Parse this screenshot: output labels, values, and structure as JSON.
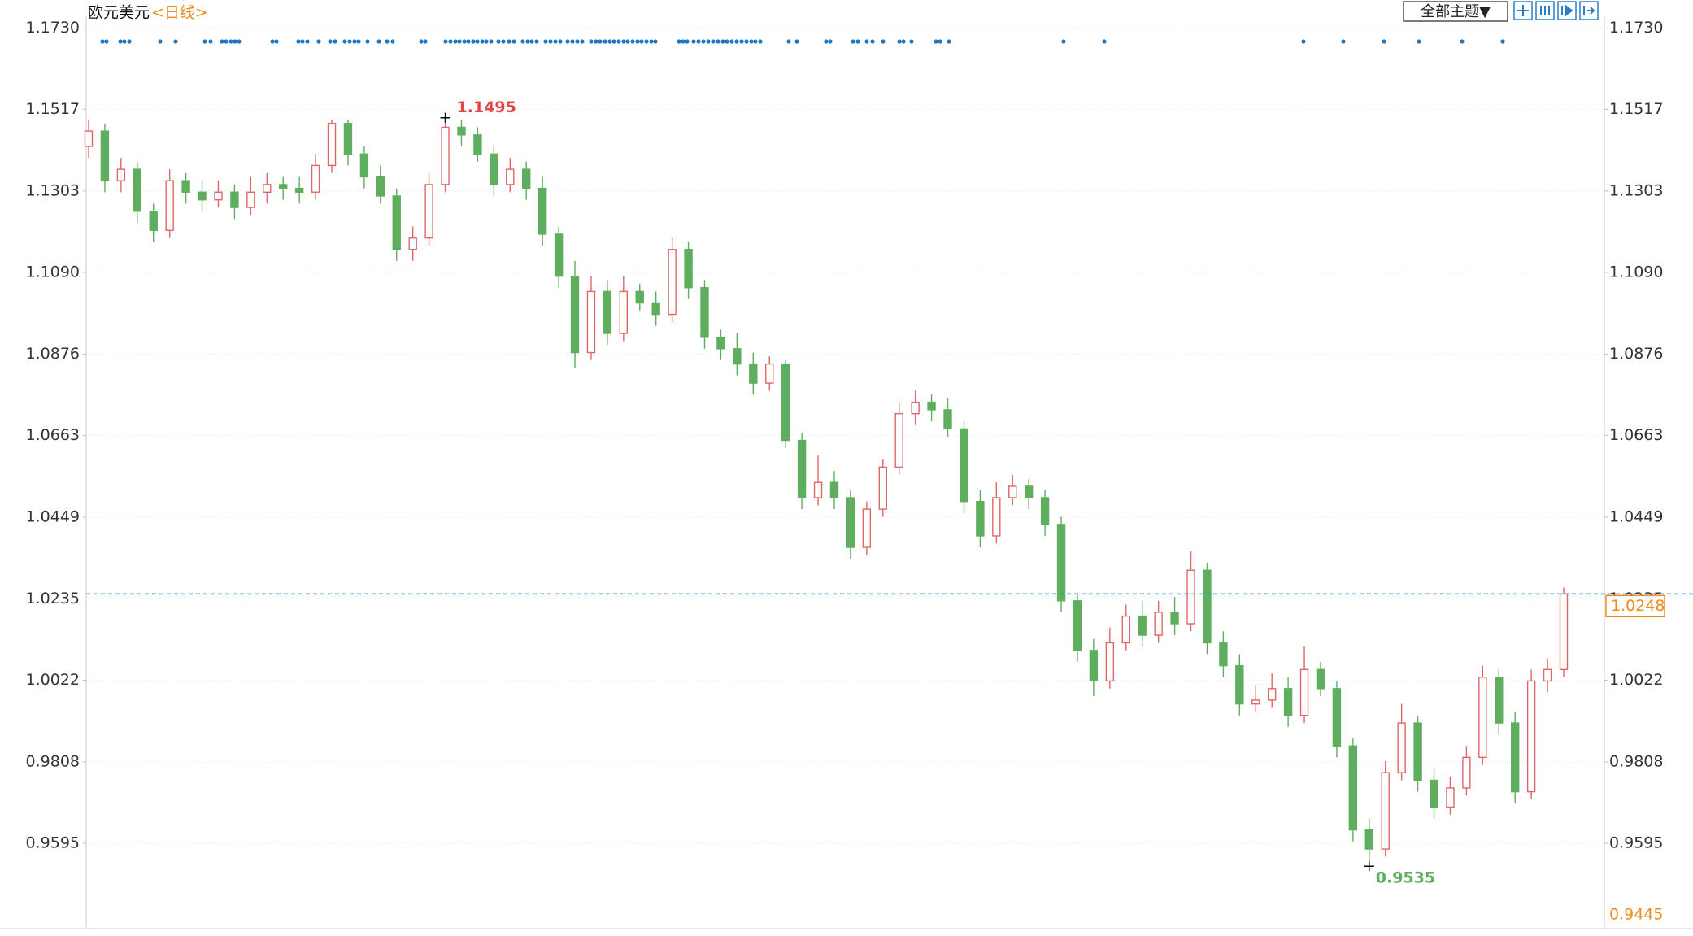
{
  "chart_data": {
    "type": "candlestick",
    "title": "欧元美元",
    "subtitle": "<日线>",
    "theme_button": "全部主题▼",
    "up_color": "#e06666",
    "down_color": "#5fae5f",
    "line_color": "#1f8dd6",
    "grid": true,
    "ylim": [
      0.938,
      1.1752
    ],
    "yticks": [
      {
        "value": 1.173,
        "label": "1.1730"
      },
      1.1517,
      1.1303,
      {
        "value": 1.109,
        "label": "1.1090"
      },
      1.0876,
      1.0663,
      1.0449,
      1.0235,
      1.0022,
      0.9808,
      0.9595
    ],
    "high_marker": 1.1495,
    "low_marker": 0.9535,
    "last_price": 1.0248,
    "bottom_label": 0.9445,
    "series": {
      "open": [
        1.142,
        1.146,
        1.133,
        1.136,
        1.125,
        1.12,
        1.133,
        1.13,
        1.128,
        1.13,
        1.126,
        1.13,
        1.132,
        1.131,
        1.13,
        1.137,
        1.148,
        1.14,
        1.134,
        1.129,
        1.115,
        1.118,
        1.132,
        1.147,
        1.145,
        1.14,
        1.132,
        1.136,
        1.131,
        1.119,
        1.108,
        1.088,
        1.104,
        1.093,
        1.104,
        1.101,
        1.098,
        1.115,
        1.105,
        1.092,
        1.089,
        1.085,
        1.08,
        1.085,
        1.065,
        1.05,
        1.054,
        1.05,
        1.037,
        1.047,
        1.058,
        1.072,
        1.075,
        1.073,
        1.068,
        1.049,
        1.04,
        1.05,
        1.053,
        1.05,
        1.043,
        1.023,
        1.01,
        1.002,
        1.012,
        1.019,
        1.014,
        1.02,
        1.017,
        1.031,
        1.012,
        1.006,
        0.996,
        0.997,
        1.0,
        0.993,
        1.005,
        1.0,
        0.985,
        0.963,
        0.958,
        0.978,
        0.991,
        0.976,
        0.969,
        0.974,
        0.982,
        1.003,
        0.991,
        0.973,
        1.002,
        1.005
      ],
      "high": [
        1.149,
        1.148,
        1.139,
        1.138,
        1.127,
        1.136,
        1.135,
        1.133,
        1.133,
        1.132,
        1.134,
        1.135,
        1.134,
        1.134,
        1.14,
        1.149,
        1.1488,
        1.142,
        1.137,
        1.131,
        1.121,
        1.135,
        1.1495,
        1.149,
        1.147,
        1.142,
        1.139,
        1.138,
        1.134,
        1.121,
        1.112,
        1.108,
        1.107,
        1.108,
        1.106,
        1.104,
        1.118,
        1.117,
        1.107,
        1.094,
        1.093,
        1.088,
        1.087,
        1.086,
        1.067,
        1.061,
        1.057,
        1.052,
        1.049,
        1.06,
        1.075,
        1.078,
        1.077,
        1.076,
        1.07,
        1.052,
        1.054,
        1.056,
        1.055,
        1.052,
        1.045,
        1.025,
        1.013,
        1.016,
        1.022,
        1.023,
        1.023,
        1.024,
        1.036,
        1.033,
        1.015,
        1.009,
        1.001,
        1.004,
        1.003,
        1.011,
        1.007,
        1.002,
        0.987,
        0.966,
        0.981,
        0.996,
        0.993,
        0.979,
        0.977,
        0.985,
        1.006,
        1.005,
        0.994,
        1.005,
        1.008,
        1.0265
      ],
      "low": [
        1.139,
        1.13,
        1.13,
        1.122,
        1.117,
        1.118,
        1.127,
        1.125,
        1.126,
        1.123,
        1.124,
        1.127,
        1.128,
        1.127,
        1.128,
        1.135,
        1.137,
        1.131,
        1.127,
        1.112,
        1.112,
        1.116,
        1.13,
        1.142,
        1.138,
        1.129,
        1.13,
        1.128,
        1.116,
        1.105,
        1.084,
        1.086,
        1.09,
        1.091,
        1.099,
        1.095,
        1.096,
        1.102,
        1.089,
        1.086,
        1.082,
        1.077,
        1.078,
        1.063,
        1.047,
        1.048,
        1.047,
        1.034,
        1.035,
        1.045,
        1.056,
        1.069,
        1.07,
        1.066,
        1.046,
        1.037,
        1.038,
        1.048,
        1.047,
        1.04,
        1.02,
        1.007,
        0.998,
        1.0,
        1.01,
        1.011,
        1.012,
        1.014,
        1.015,
        1.009,
        1.003,
        0.993,
        0.994,
        0.995,
        0.99,
        0.991,
        0.998,
        0.982,
        0.96,
        0.9535,
        0.956,
        0.976,
        0.973,
        0.966,
        0.967,
        0.972,
        0.98,
        0.988,
        0.97,
        0.971,
        0.999,
        1.003
      ],
      "close": [
        1.146,
        1.133,
        1.136,
        1.125,
        1.12,
        1.133,
        1.13,
        1.128,
        1.13,
        1.126,
        1.13,
        1.132,
        1.131,
        1.13,
        1.137,
        1.148,
        1.14,
        1.134,
        1.129,
        1.115,
        1.118,
        1.132,
        1.147,
        1.145,
        1.14,
        1.132,
        1.136,
        1.131,
        1.119,
        1.108,
        1.088,
        1.104,
        1.093,
        1.104,
        1.101,
        1.098,
        1.115,
        1.105,
        1.092,
        1.089,
        1.085,
        1.08,
        1.085,
        1.065,
        1.05,
        1.054,
        1.05,
        1.037,
        1.047,
        1.058,
        1.072,
        1.075,
        1.073,
        1.068,
        1.049,
        1.04,
        1.05,
        1.053,
        1.05,
        1.043,
        1.023,
        1.01,
        1.002,
        1.012,
        1.019,
        1.014,
        1.02,
        1.017,
        1.031,
        1.012,
        1.006,
        0.996,
        0.997,
        1.0,
        0.993,
        1.005,
        1.0,
        0.985,
        0.963,
        0.958,
        0.978,
        0.991,
        0.976,
        0.969,
        0.974,
        0.982,
        1.003,
        0.991,
        0.973,
        1.002,
        1.005,
        1.0248
      ]
    }
  }
}
